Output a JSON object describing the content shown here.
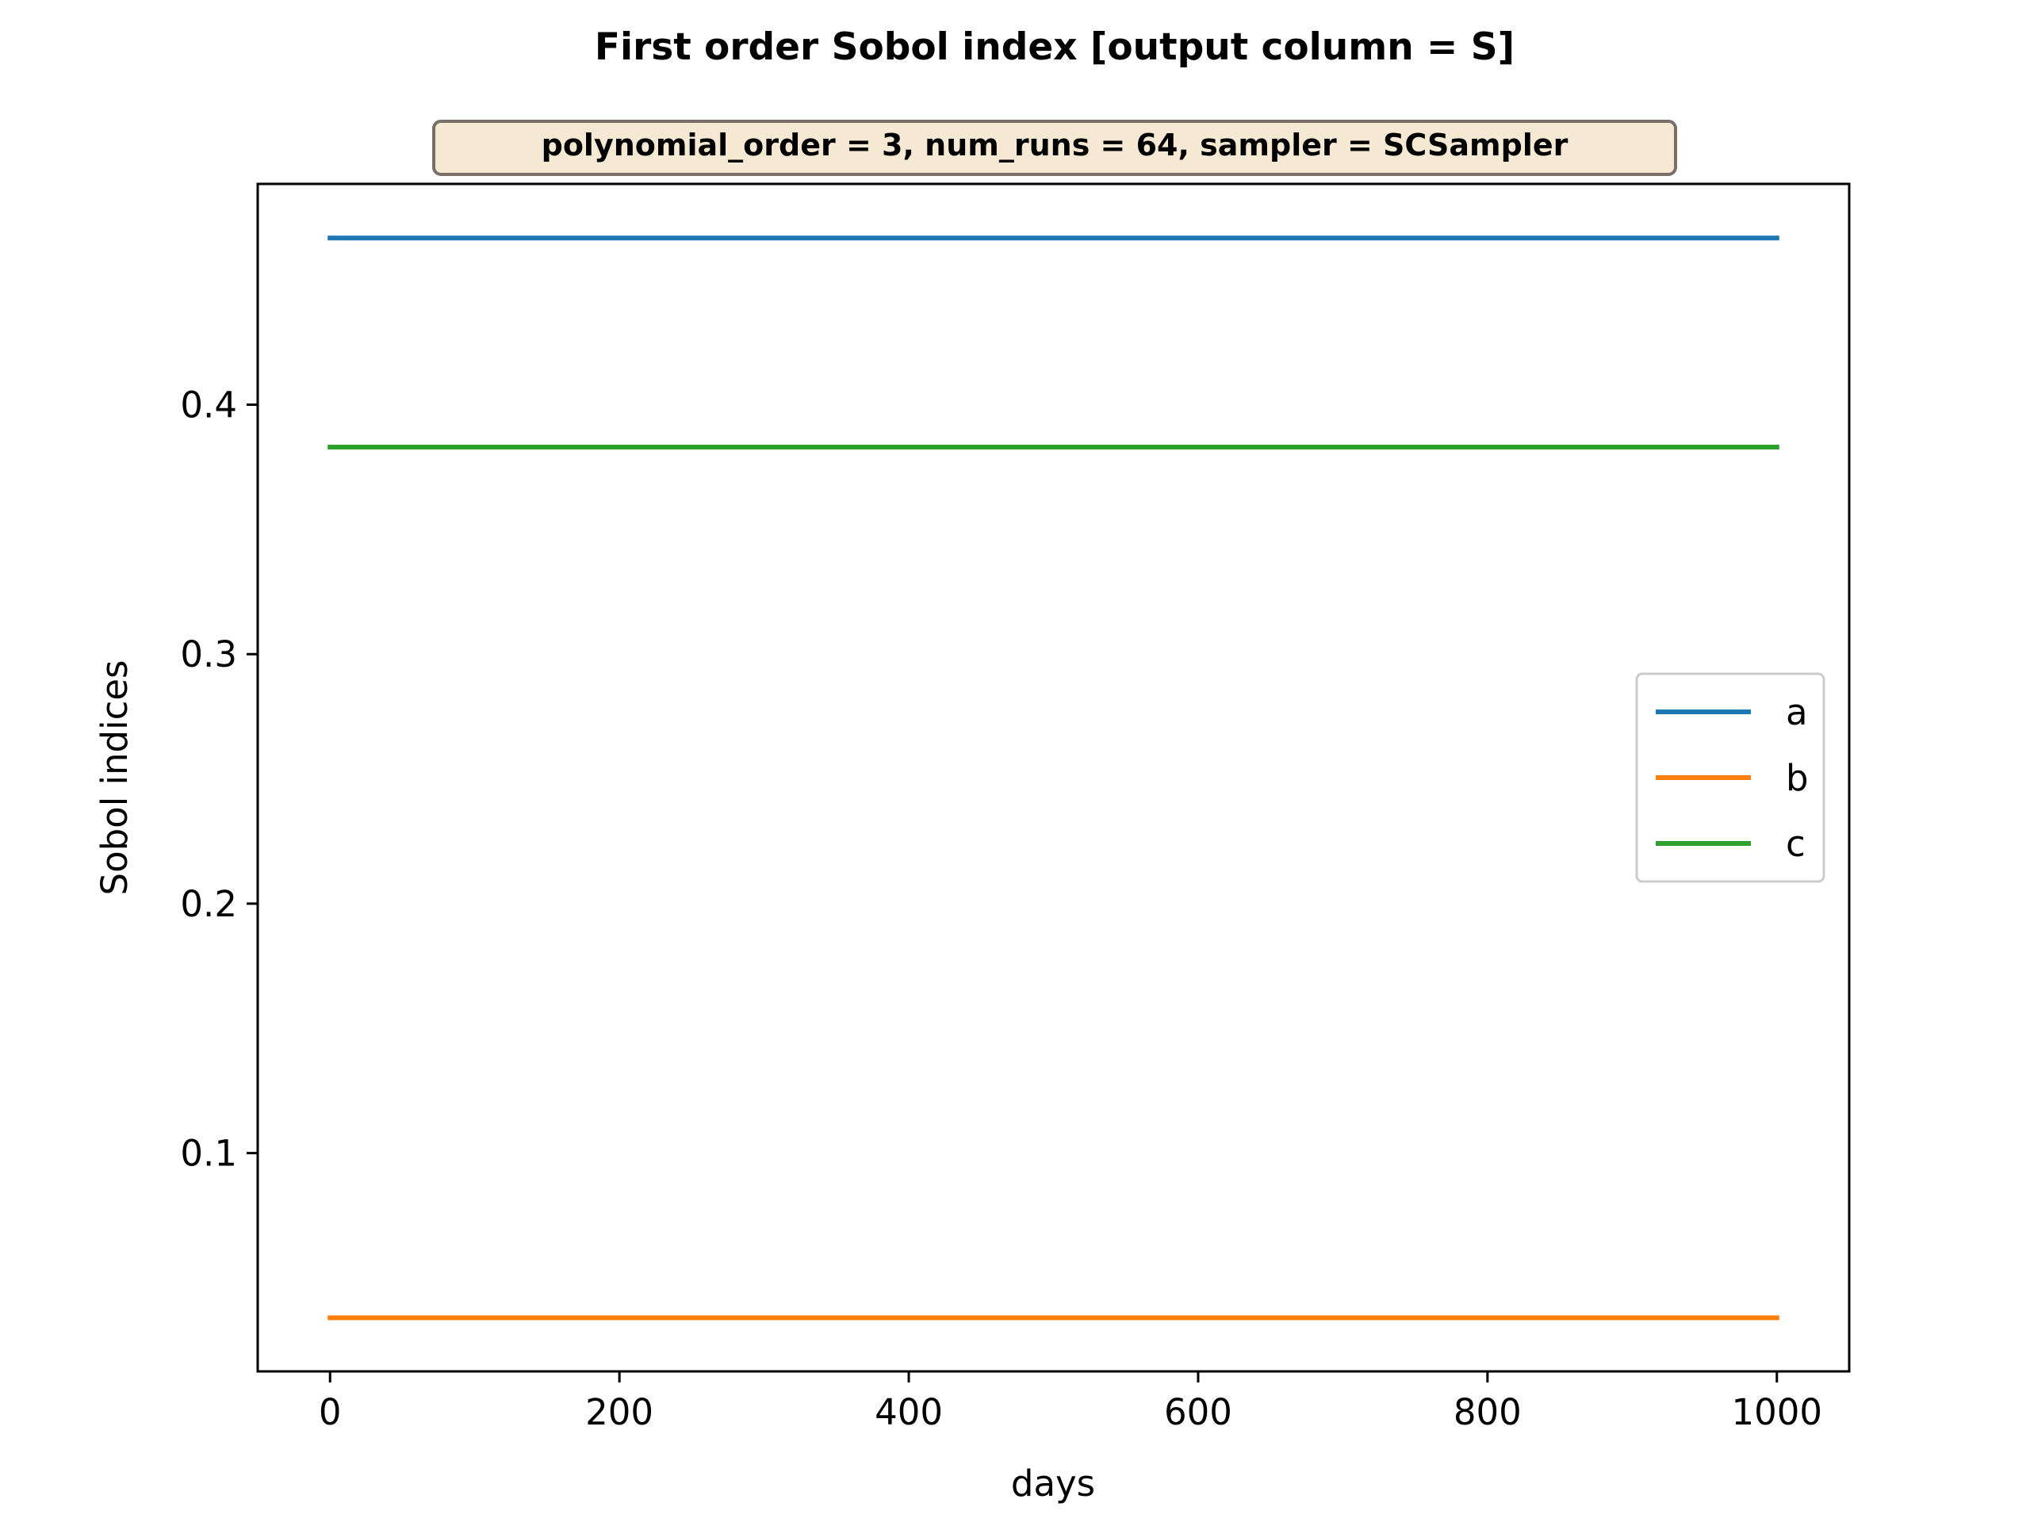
{
  "chart_data": {
    "type": "line",
    "title": "First order Sobol index [output column = S]",
    "subtitle": "polynomial_order = 3, num_runs = 64, sampler = SCSampler",
    "xlabel": "days",
    "ylabel": "Sobol indices",
    "xlim": [
      -50,
      1050
    ],
    "ylim": [
      0.0125,
      0.4885
    ],
    "xticks": [
      0,
      200,
      400,
      600,
      800,
      1000
    ],
    "xtick_labels": [
      "0",
      "200",
      "400",
      "600",
      "800",
      "1000"
    ],
    "yticks": [
      0.1,
      0.2,
      0.3,
      0.4
    ],
    "ytick_labels": [
      "0.1",
      "0.2",
      "0.3",
      "0.4"
    ],
    "grid": false,
    "legend_position": "center-right",
    "x": [
      0,
      1000
    ],
    "series": [
      {
        "name": "a",
        "color": "#1f77b4",
        "values": [
          0.4668,
          0.4668
        ]
      },
      {
        "name": "b",
        "color": "#ff7f0e",
        "values": [
          0.034,
          0.034
        ]
      },
      {
        "name": "c",
        "color": "#2ca02c",
        "values": [
          0.383,
          0.383
        ]
      }
    ],
    "subtitle_box": {
      "fill": "#f6e9d4",
      "edge": "#7a6f68"
    }
  }
}
